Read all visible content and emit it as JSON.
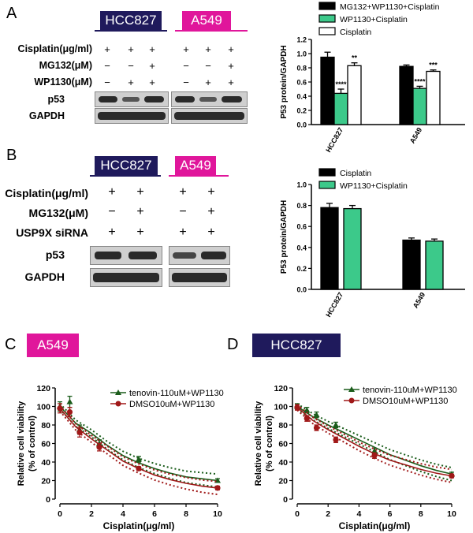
{
  "panels": {
    "A": "A",
    "B": "B",
    "C": "C",
    "D": "D"
  },
  "panelA": {
    "cell_lines": [
      "HCC827",
      "A549"
    ],
    "row_labels": [
      "Cisplatin(μg/ml)",
      "MG132(μM)",
      "WP1130(μM)"
    ],
    "symbols": [
      [
        "+",
        "+",
        "+",
        "+",
        "+",
        "+"
      ],
      [
        "−",
        "−",
        "+",
        "−",
        "−",
        "+"
      ],
      [
        "−",
        "+",
        "+",
        "−",
        "+",
        "+"
      ]
    ],
    "blot_labels": [
      "p53",
      "GAPDH"
    ]
  },
  "panelB": {
    "cell_lines": [
      "HCC827",
      "A549"
    ],
    "row_labels": [
      "Cisplatin(μg/ml)",
      "MG132(μM)",
      "USP9X siRNA"
    ],
    "symbols": [
      [
        "+",
        "+",
        "+",
        "+"
      ],
      [
        "−",
        "+",
        "−",
        "+"
      ],
      [
        "+",
        "+",
        "+",
        "+"
      ]
    ],
    "blot_labels": [
      "p53",
      "GAPDH"
    ]
  },
  "panelC": {
    "cell_line": "A549"
  },
  "panelD": {
    "cell_line": "HCC827"
  },
  "colors": {
    "navy": "#1f1a5c",
    "magenta": "#e0169b",
    "green": "#3cc98a",
    "dark_green": "#1a5c1a",
    "dark_red": "#a01818"
  },
  "chart_data": [
    {
      "id": "barA",
      "type": "bar",
      "ylabel": "P53 protein/GAPDH",
      "ylim": [
        0,
        1.2
      ],
      "yticks": [
        "0.0",
        "0.2",
        "0.4",
        "0.6",
        "0.8",
        "1.0",
        "1.2"
      ],
      "categories": [
        "HCC827",
        "A549"
      ],
      "series": [
        {
          "name": "MG132+WP1130+Cisplatin",
          "color": "#000000",
          "values": [
            0.95,
            0.82
          ],
          "errors": [
            0.07,
            0.02
          ],
          "sig": [
            "",
            ""
          ]
        },
        {
          "name": "WP1130+Cisplatin",
          "color": "#3cc98a",
          "values": [
            0.44,
            0.51
          ],
          "errors": [
            0.06,
            0.03
          ],
          "sig": [
            "****",
            "****"
          ]
        },
        {
          "name": "Cisplatin",
          "color": "#ffffff",
          "values": [
            0.83,
            0.75
          ],
          "errors": [
            0.04,
            0.02
          ],
          "sig": [
            "**",
            "***"
          ]
        }
      ]
    },
    {
      "id": "barB",
      "type": "bar",
      "ylabel": "P53 protein/GAPDH",
      "ylim": [
        0,
        1.0
      ],
      "yticks": [
        "0.0",
        "0.2",
        "0.4",
        "0.6",
        "0.8",
        "1.0"
      ],
      "categories": [
        "HCC827",
        "A549"
      ],
      "series": [
        {
          "name": "Cisplatin",
          "color": "#000000",
          "values": [
            0.78,
            0.47
          ],
          "errors": [
            0.04,
            0.02
          ],
          "sig": [
            "",
            ""
          ]
        },
        {
          "name": "WP1130+Cisplatin",
          "color": "#3cc98a",
          "values": [
            0.77,
            0.46
          ],
          "errors": [
            0.03,
            0.02
          ],
          "sig": [
            "",
            ""
          ]
        }
      ]
    },
    {
      "id": "lineC",
      "type": "line",
      "xlabel": "Cisplatin(μg/ml)",
      "ylabel": "Relative cell viability\n(% of control)",
      "xlim": [
        0,
        10
      ],
      "ylim": [
        0,
        120
      ],
      "xticks": [
        "0",
        "2",
        "4",
        "6",
        "8",
        "10"
      ],
      "yticks": [
        "0",
        "20",
        "40",
        "60",
        "80",
        "100",
        "120"
      ],
      "series": [
        {
          "name": "tenovin-110uM+WP1130",
          "color": "#1a5c1a",
          "marker": "triangle",
          "x": [
            0,
            0.625,
            1.25,
            2.5,
            5,
            10
          ],
          "y": [
            100,
            105,
            75,
            60,
            43,
            20
          ],
          "err": [
            5,
            6,
            5,
            4,
            3,
            2
          ],
          "fit": [
            100,
            82,
            71,
            58,
            47,
            39,
            33,
            28,
            24,
            22,
            20
          ]
        },
        {
          "name": "DMSO10uM+WP1130",
          "color": "#a01818",
          "marker": "circle",
          "x": [
            0,
            0.625,
            1.25,
            2.5,
            5,
            10
          ],
          "y": [
            98,
            94,
            72,
            56,
            33,
            12
          ],
          "err": [
            5,
            5,
            5,
            4,
            2,
            2
          ],
          "fit": [
            98,
            78,
            65,
            53,
            41,
            33,
            26,
            21,
            17,
            14,
            12
          ]
        }
      ]
    },
    {
      "id": "lineD",
      "type": "line",
      "xlabel": "Cisplatin(μg/ml)",
      "ylabel": "Relative cell viability\n(% of control)",
      "xlim": [
        0,
        10
      ],
      "ylim": [
        0,
        120
      ],
      "xticks": [
        "0",
        "2",
        "4",
        "6",
        "8",
        "10"
      ],
      "yticks": [
        "0",
        "20",
        "40",
        "60",
        "80",
        "100",
        "120"
      ],
      "series": [
        {
          "name": "tenovin-110uM+WP1130",
          "color": "#1a5c1a",
          "marker": "triangle",
          "x": [
            0,
            0.625,
            1.25,
            2.5,
            5,
            10
          ],
          "y": [
            100,
            96,
            91,
            80,
            52,
            27
          ],
          "err": [
            3,
            3,
            3,
            3,
            3,
            2
          ],
          "fit": [
            100,
            89,
            80,
            72,
            64,
            56,
            48,
            42,
            36,
            31,
            27
          ]
        },
        {
          "name": "DMSO10uM+WP1130",
          "color": "#a01818",
          "marker": "circle",
          "x": [
            0,
            0.625,
            1.25,
            2.5,
            5,
            10
          ],
          "y": [
            99,
            87,
            77,
            64,
            47,
            25
          ],
          "err": [
            3,
            3,
            3,
            3,
            3,
            2
          ],
          "fit": [
            99,
            85,
            75,
            66,
            57,
            49,
            42,
            37,
            32,
            28,
            25
          ]
        }
      ]
    }
  ]
}
